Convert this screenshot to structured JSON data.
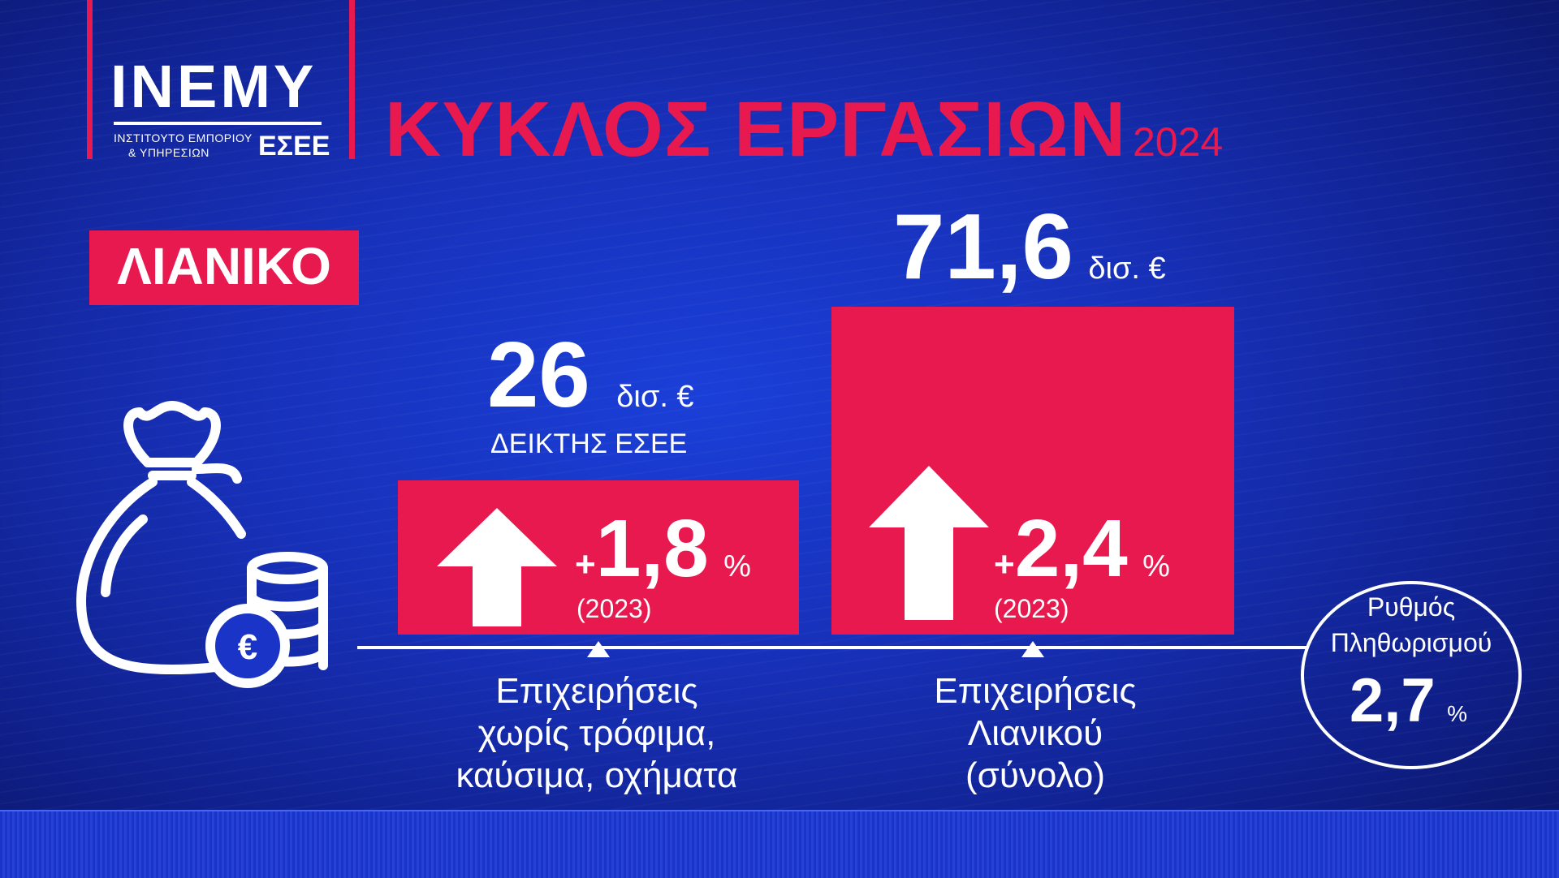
{
  "logo": {
    "name": "INEMY",
    "sub_line1": "ΙΝΣΤΙΤΟΥΤΟ ΕΜΠΟΡΙΟΥ",
    "sub_line2": "& ΥΠΗΡΕΣΙΩΝ",
    "org": "ΕΣΕΕ"
  },
  "header": {
    "title": "ΚΥΚΛΟΣ ΕΡΓΑΣΙΩΝ",
    "year": "2024"
  },
  "sector": "ΛΙΑΝΙΚΟ",
  "colors": {
    "accent": "#e8194f",
    "background": "#1730b8",
    "text": "#ffffff"
  },
  "icons": {
    "bag": "money-bag-icon",
    "coins": "coin-stack-icon",
    "arrow": "arrow-up-icon"
  },
  "chart_data": {
    "type": "bar",
    "title": "ΚΥΚΛΟΣ ΕΡΓΑΣΙΩΝ",
    "categories": [
      {
        "line1": "Επιχειρήσεις",
        "line2": "χωρίς τρόφιμα,",
        "line3": "καύσιμα, οχήματα"
      },
      {
        "line1": "Επιχειρήσεις",
        "line2": "Λιανικού",
        "line3": "(σύνολο)"
      }
    ],
    "values": [
      26,
      71.6
    ],
    "value_labels": [
      "26",
      "71,6"
    ],
    "unit": "δισ. €",
    "sub_label": "ΔΕΙΚΤΗΣ ΕΣΕΕ",
    "changes": [
      {
        "sign": "+",
        "value": "1,8",
        "unit": "%",
        "ref": "(2023)"
      },
      {
        "sign": "+",
        "value": "2,4",
        "unit": "%",
        "ref": "(2023)"
      }
    ]
  },
  "inflation": {
    "line1": "Ρυθμός",
    "line2": "Πληθωρισμού",
    "value": "2,7",
    "unit": "%"
  }
}
